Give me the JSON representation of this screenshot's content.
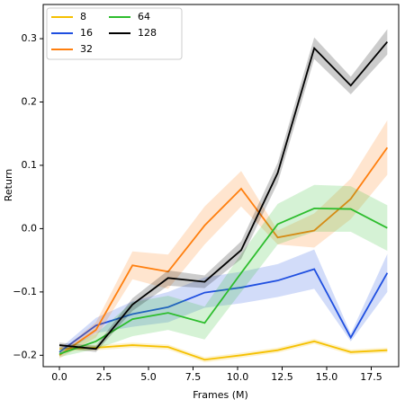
{
  "chart_data": {
    "type": "line",
    "x_label": "Frames (M)",
    "y_label": "Return",
    "x": [
      0,
      2.05,
      4.1,
      6.1,
      8.15,
      10.2,
      12.25,
      14.3,
      16.35,
      18.4
    ],
    "xlim": [
      -0.91,
      19.04
    ],
    "xticks": [
      {
        "value": 0,
        "label": "0.0"
      },
      {
        "value": 2.5,
        "label": "2.5"
      },
      {
        "value": 5,
        "label": "5.0"
      },
      {
        "value": 7.5,
        "label": "7.5"
      },
      {
        "value": 10,
        "label": "10.0"
      },
      {
        "value": 12.5,
        "label": "12.5"
      },
      {
        "value": 15,
        "label": "15.0"
      },
      {
        "value": 17.5,
        "label": "17.5"
      }
    ],
    "ylim": [
      -0.218,
      0.354
    ],
    "yticks": [
      {
        "value": -0.2,
        "label": "−0.2"
      },
      {
        "value": -0.1,
        "label": "−0.1"
      },
      {
        "value": 0,
        "label": "0.0"
      },
      {
        "value": 0.1,
        "label": "0.1"
      },
      {
        "value": 0.2,
        "label": "0.2"
      },
      {
        "value": 0.3,
        "label": "0.3"
      }
    ],
    "legend": "upper left",
    "series": [
      {
        "name": "8",
        "color": "#f5c000",
        "values": [
          -0.19,
          -0.188,
          -0.184,
          -0.187,
          -0.207,
          -0.2,
          -0.192,
          -0.178,
          -0.195,
          -0.192
        ],
        "lower": [
          -0.194,
          -0.192,
          -0.188,
          -0.191,
          -0.211,
          -0.204,
          -0.196,
          -0.182,
          -0.199,
          -0.196
        ],
        "upper": [
          -0.186,
          -0.184,
          -0.18,
          -0.183,
          -0.203,
          -0.196,
          -0.188,
          -0.174,
          -0.191,
          -0.188
        ]
      },
      {
        "name": "16",
        "color": "#1f4fe0",
        "values": [
          -0.195,
          -0.153,
          -0.135,
          -0.124,
          -0.101,
          -0.093,
          -0.082,
          -0.064,
          -0.172,
          -0.07
        ],
        "lower": [
          -0.2,
          -0.165,
          -0.155,
          -0.148,
          -0.125,
          -0.118,
          -0.108,
          -0.095,
          -0.178,
          -0.1
        ],
        "upper": [
          -0.19,
          -0.141,
          -0.115,
          -0.1,
          -0.077,
          -0.068,
          -0.056,
          -0.033,
          -0.166,
          -0.04
        ]
      },
      {
        "name": "32",
        "color": "#ff7f0e",
        "values": [
          -0.2,
          -0.16,
          -0.058,
          -0.068,
          0.005,
          0.063,
          -0.014,
          -0.003,
          0.047,
          0.128
        ],
        "lower": [
          -0.205,
          -0.172,
          -0.08,
          -0.095,
          -0.025,
          0.035,
          -0.025,
          -0.03,
          0.015,
          0.085
        ],
        "upper": [
          -0.195,
          -0.148,
          -0.036,
          -0.041,
          0.035,
          0.091,
          -0.003,
          0.024,
          0.079,
          0.171
        ]
      },
      {
        "name": "64",
        "color": "#2dbd2d",
        "values": [
          -0.198,
          -0.178,
          -0.143,
          -0.133,
          -0.149,
          -0.07,
          0.007,
          0.032,
          0.031,
          0.001
        ],
        "lower": [
          -0.203,
          -0.19,
          -0.17,
          -0.16,
          -0.175,
          -0.1,
          -0.025,
          -0.005,
          -0.005,
          -0.035
        ],
        "upper": [
          -0.193,
          -0.166,
          -0.116,
          -0.106,
          -0.123,
          -0.04,
          0.039,
          0.069,
          0.067,
          0.037
        ]
      },
      {
        "name": "128",
        "color": "#000000",
        "values": [
          -0.184,
          -0.19,
          -0.12,
          -0.078,
          -0.084,
          -0.034,
          0.088,
          0.285,
          0.226,
          0.295
        ],
        "lower": [
          -0.188,
          -0.195,
          -0.13,
          -0.09,
          -0.094,
          -0.048,
          0.072,
          0.268,
          0.212,
          0.275
        ],
        "upper": [
          -0.18,
          -0.185,
          -0.11,
          -0.066,
          -0.074,
          -0.02,
          0.104,
          0.302,
          0.24,
          0.315
        ]
      }
    ]
  }
}
